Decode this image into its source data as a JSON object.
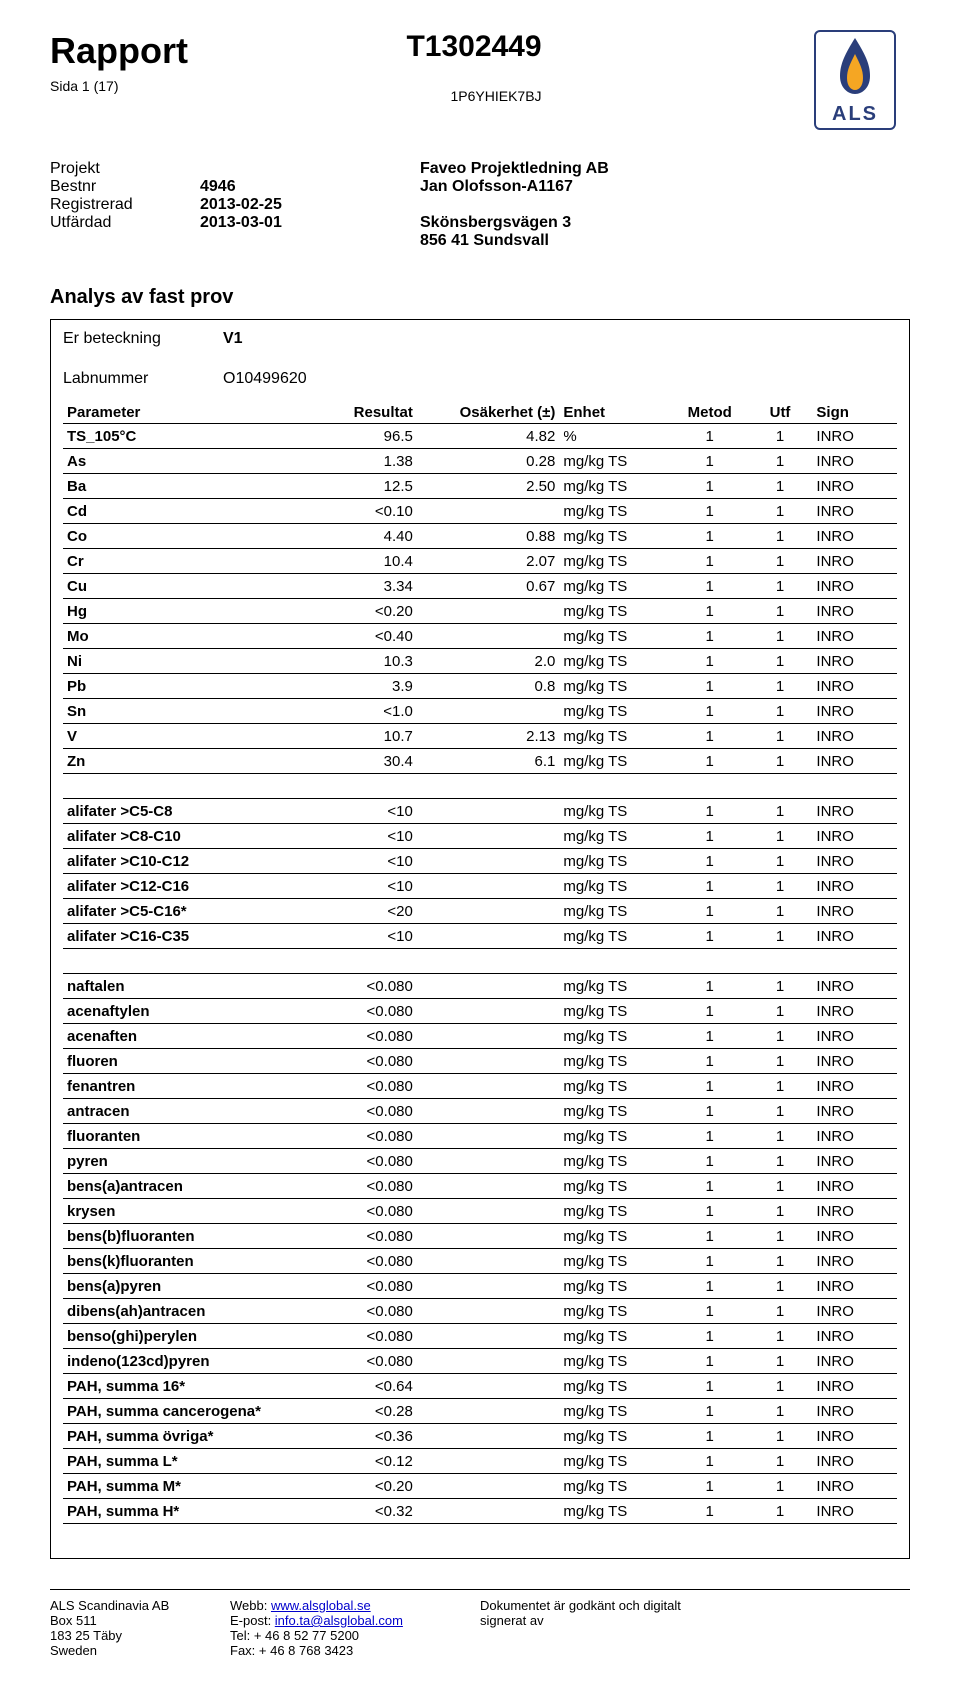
{
  "header": {
    "title_left": "Rapport",
    "title_center": "T1302449",
    "page_info": "Sida 1 (17)",
    "ref_code": "1P6YHIEK7BJ",
    "logo_label": "ALS",
    "logo_flame_color": "#2a3e7a",
    "logo_flame_inner": "#f5a623",
    "logo_border_color": "#2a3e7a"
  },
  "meta": {
    "projekt_label": "Projekt",
    "bestnr_label": "Bestnr",
    "bestnr_value": "4946",
    "reg_label": "Registrerad",
    "reg_value": "2013-02-25",
    "utf_label": "Utfärdad",
    "utf_value": "2013-03-01",
    "right_line1": "Faveo Projektledning AB",
    "right_line2": "Jan Olofsson-A1167",
    "right_line3": "Skönsbergsvägen 3",
    "right_line4": "856 41 Sundsvall"
  },
  "section_title": "Analys av fast prov",
  "box": {
    "er_bet_label": "Er beteckning",
    "er_bet_value": "V1",
    "lab_label": "Labnummer",
    "lab_value": "O10499620"
  },
  "table": {
    "columns": [
      "Parameter",
      "Resultat",
      "Osäkerhet (±)",
      "Enhet",
      "Metod",
      "Utf",
      "Sign"
    ],
    "groups": [
      {
        "rows": [
          [
            "TS_105°C",
            "96.5",
            "4.82",
            "%",
            "1",
            "1",
            "INRO"
          ],
          [
            "As",
            "1.38",
            "0.28",
            "mg/kg TS",
            "1",
            "1",
            "INRO"
          ],
          [
            "Ba",
            "12.5",
            "2.50",
            "mg/kg TS",
            "1",
            "1",
            "INRO"
          ],
          [
            "Cd",
            "<0.10",
            "",
            "mg/kg TS",
            "1",
            "1",
            "INRO"
          ],
          [
            "Co",
            "4.40",
            "0.88",
            "mg/kg TS",
            "1",
            "1",
            "INRO"
          ],
          [
            "Cr",
            "10.4",
            "2.07",
            "mg/kg TS",
            "1",
            "1",
            "INRO"
          ],
          [
            "Cu",
            "3.34",
            "0.67",
            "mg/kg TS",
            "1",
            "1",
            "INRO"
          ],
          [
            "Hg",
            "<0.20",
            "",
            "mg/kg TS",
            "1",
            "1",
            "INRO"
          ],
          [
            "Mo",
            "<0.40",
            "",
            "mg/kg TS",
            "1",
            "1",
            "INRO"
          ],
          [
            "Ni",
            "10.3",
            "2.0",
            "mg/kg TS",
            "1",
            "1",
            "INRO"
          ],
          [
            "Pb",
            "3.9",
            "0.8",
            "mg/kg TS",
            "1",
            "1",
            "INRO"
          ],
          [
            "Sn",
            "<1.0",
            "",
            "mg/kg TS",
            "1",
            "1",
            "INRO"
          ],
          [
            "V",
            "10.7",
            "2.13",
            "mg/kg TS",
            "1",
            "1",
            "INRO"
          ],
          [
            "Zn",
            "30.4",
            "6.1",
            "mg/kg TS",
            "1",
            "1",
            "INRO"
          ]
        ]
      },
      {
        "rows": [
          [
            "alifater >C5-C8",
            "<10",
            "",
            "mg/kg TS",
            "1",
            "1",
            "INRO"
          ],
          [
            "alifater >C8-C10",
            "<10",
            "",
            "mg/kg TS",
            "1",
            "1",
            "INRO"
          ],
          [
            "alifater >C10-C12",
            "<10",
            "",
            "mg/kg TS",
            "1",
            "1",
            "INRO"
          ],
          [
            "alifater >C12-C16",
            "<10",
            "",
            "mg/kg TS",
            "1",
            "1",
            "INRO"
          ],
          [
            "alifater >C5-C16*",
            "<20",
            "",
            "mg/kg TS",
            "1",
            "1",
            "INRO"
          ],
          [
            "alifater >C16-C35",
            "<10",
            "",
            "mg/kg TS",
            "1",
            "1",
            "INRO"
          ]
        ]
      },
      {
        "rows": [
          [
            "naftalen",
            "<0.080",
            "",
            "mg/kg TS",
            "1",
            "1",
            "INRO"
          ],
          [
            "acenaftylen",
            "<0.080",
            "",
            "mg/kg TS",
            "1",
            "1",
            "INRO"
          ],
          [
            "acenaften",
            "<0.080",
            "",
            "mg/kg TS",
            "1",
            "1",
            "INRO"
          ],
          [
            "fluoren",
            "<0.080",
            "",
            "mg/kg TS",
            "1",
            "1",
            "INRO"
          ],
          [
            "fenantren",
            "<0.080",
            "",
            "mg/kg TS",
            "1",
            "1",
            "INRO"
          ],
          [
            "antracen",
            "<0.080",
            "",
            "mg/kg TS",
            "1",
            "1",
            "INRO"
          ],
          [
            "fluoranten",
            "<0.080",
            "",
            "mg/kg TS",
            "1",
            "1",
            "INRO"
          ],
          [
            "pyren",
            "<0.080",
            "",
            "mg/kg TS",
            "1",
            "1",
            "INRO"
          ],
          [
            "bens(a)antracen",
            "<0.080",
            "",
            "mg/kg TS",
            "1",
            "1",
            "INRO"
          ],
          [
            "krysen",
            "<0.080",
            "",
            "mg/kg TS",
            "1",
            "1",
            "INRO"
          ],
          [
            "bens(b)fluoranten",
            "<0.080",
            "",
            "mg/kg TS",
            "1",
            "1",
            "INRO"
          ],
          [
            "bens(k)fluoranten",
            "<0.080",
            "",
            "mg/kg TS",
            "1",
            "1",
            "INRO"
          ],
          [
            "bens(a)pyren",
            "<0.080",
            "",
            "mg/kg TS",
            "1",
            "1",
            "INRO"
          ],
          [
            "dibens(ah)antracen",
            "<0.080",
            "",
            "mg/kg TS",
            "1",
            "1",
            "INRO"
          ],
          [
            "benso(ghi)perylen",
            "<0.080",
            "",
            "mg/kg TS",
            "1",
            "1",
            "INRO"
          ],
          [
            "indeno(123cd)pyren",
            "<0.080",
            "",
            "mg/kg TS",
            "1",
            "1",
            "INRO"
          ],
          [
            "PAH, summa 16*",
            "<0.64",
            "",
            "mg/kg TS",
            "1",
            "1",
            "INRO"
          ],
          [
            "PAH, summa cancerogena*",
            "<0.28",
            "",
            "mg/kg TS",
            "1",
            "1",
            "INRO"
          ],
          [
            "PAH, summa övriga*",
            "<0.36",
            "",
            "mg/kg TS",
            "1",
            "1",
            "INRO"
          ],
          [
            "PAH, summa L*",
            "<0.12",
            "",
            "mg/kg TS",
            "1",
            "1",
            "INRO"
          ],
          [
            "PAH, summa M*",
            "<0.20",
            "",
            "mg/kg TS",
            "1",
            "1",
            "INRO"
          ],
          [
            "PAH, summa H*",
            "<0.32",
            "",
            "mg/kg TS",
            "1",
            "1",
            "INRO"
          ]
        ]
      }
    ]
  },
  "footer": {
    "col1": [
      "ALS Scandinavia AB",
      "Box 511",
      "183 25 Täby",
      "Sweden"
    ],
    "col2_labels": [
      "Webb: ",
      "E-post: ",
      "Tel: + 46 8 52 77 5200",
      "Fax: + 46 8 768 3423"
    ],
    "col2_link1": "www.alsglobal.se",
    "col2_link2": "info.ta@alsglobal.com",
    "col3": [
      "Dokumentet är godkänt och digitalt",
      "signerat av"
    ]
  }
}
